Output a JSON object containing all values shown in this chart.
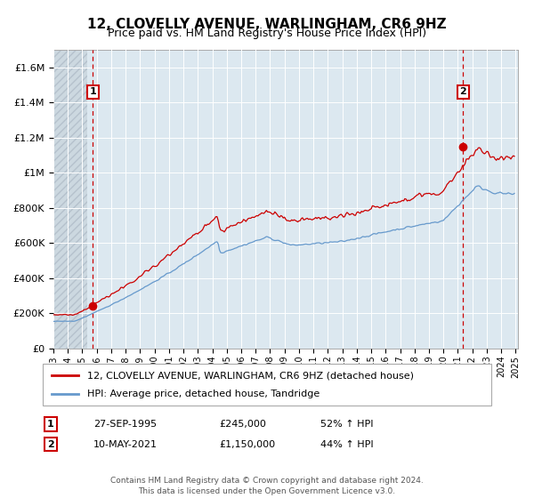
{
  "title": "12, CLOVELLY AVENUE, WARLINGHAM, CR6 9HZ",
  "subtitle": "Price paid vs. HM Land Registry's House Price Index (HPI)",
  "legend_line1": "12, CLOVELLY AVENUE, WARLINGHAM, CR6 9HZ (detached house)",
  "legend_line2": "HPI: Average price, detached house, Tandridge",
  "annotation1_date": "27-SEP-1995",
  "annotation1_price": "£245,000",
  "annotation1_hpi": "52% ↑ HPI",
  "annotation2_date": "10-MAY-2021",
  "annotation2_price": "£1,150,000",
  "annotation2_hpi": "44% ↑ HPI",
  "footer": "Contains HM Land Registry data © Crown copyright and database right 2024.\nThis data is licensed under the Open Government Licence v3.0.",
  "red_color": "#cc0000",
  "blue_color": "#6699cc",
  "plot_bg": "#dce8f0",
  "grid_color": "#ffffff",
  "dashed_color": "#cc0000",
  "ylim": [
    0,
    1700000
  ],
  "yticks": [
    0,
    200000,
    400000,
    600000,
    800000,
    1000000,
    1200000,
    1400000,
    1600000
  ],
  "ytick_labels": [
    "£0",
    "£200K",
    "£400K",
    "£600K",
    "£800K",
    "£1M",
    "£1.2M",
    "£1.4M",
    "£1.6M"
  ],
  "sale1_year": 1995,
  "sale1_month": 9,
  "sale1_day": 27,
  "sale1_price": 245000,
  "sale2_year": 2021,
  "sale2_month": 5,
  "sale2_day": 10,
  "sale2_price": 1150000
}
